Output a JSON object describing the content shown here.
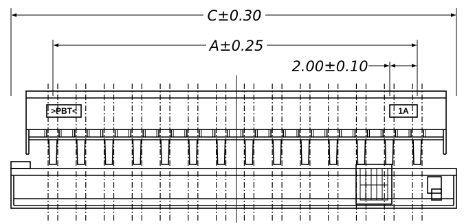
{
  "dimensions": {
    "overall": "C±0.30",
    "span": "A±0.25",
    "pitch": "2.00±0.10"
  },
  "markings": {
    "material": ">PBT<",
    "pin_one": "1A"
  },
  "pin_count": 14
}
